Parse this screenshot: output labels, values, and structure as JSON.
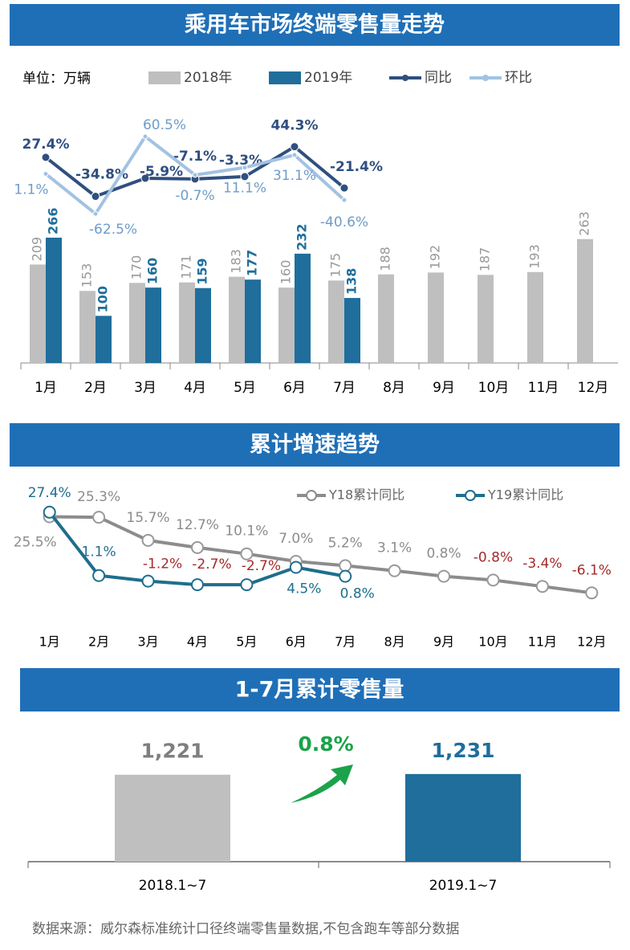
{
  "chart_data": [
    {
      "type": "combo",
      "title": "乘用车市场终端零售量走势",
      "unit": "单位：万辆",
      "categories": [
        "1月",
        "2月",
        "3月",
        "4月",
        "5月",
        "6月",
        "7月",
        "8月",
        "9月",
        "10月",
        "11月",
        "12月"
      ],
      "ylim": [
        0,
        600
      ],
      "y2lim": [
        -300,
        150
      ],
      "series": [
        {
          "name": "2018年",
          "type": "bar",
          "color": "#bfbfbf",
          "values": [
            209,
            153,
            170,
            171,
            183,
            160,
            175,
            188,
            192,
            187,
            193,
            263
          ]
        },
        {
          "name": "2019年",
          "type": "bar",
          "color": "#1f6e9c",
          "values": [
            266,
            100,
            160,
            159,
            177,
            232,
            138,
            null,
            null,
            null,
            null,
            null
          ]
        },
        {
          "name": "同比",
          "type": "line",
          "axis": "y2",
          "color": "#2f4f7f",
          "values": [
            27.4,
            -34.8,
            -5.9,
            -7.1,
            -3.3,
            44.3,
            -21.4,
            null,
            null,
            null,
            null,
            null
          ],
          "value_labels": [
            "27.4%",
            "-34.8%",
            "-5.9%",
            "-7.1%",
            "-3.3%",
            "44.3%",
            "-21.4%",
            null,
            null,
            null,
            null,
            null
          ]
        },
        {
          "name": "环比",
          "type": "line",
          "axis": "y2",
          "color": "#a3c2e2",
          "values": [
            1.1,
            -62.5,
            60.5,
            -0.7,
            11.1,
            31.1,
            -40.6,
            null,
            null,
            null,
            null,
            null
          ],
          "value_labels": [
            "1.1%",
            "-62.5%",
            "60.5%",
            "-0.7%",
            "11.1%",
            "31.1%",
            "-40.6%",
            null,
            null,
            null,
            null,
            null
          ]
        }
      ]
    },
    {
      "type": "line",
      "title": "累计增速趋势",
      "categories": [
        "1月",
        "2月",
        "3月",
        "4月",
        "5月",
        "6月",
        "7月",
        "8月",
        "9月",
        "10月",
        "11月",
        "12月"
      ],
      "ylim": [
        -20,
        40
      ],
      "series": [
        {
          "name": "Y18累计同比",
          "color": "#8c8c8c",
          "values": [
            25.5,
            25.3,
            15.7,
            12.7,
            10.1,
            7.0,
            5.2,
            3.1,
            0.8,
            -0.8,
            -3.4,
            -6.1
          ],
          "value_labels": [
            "25.5%",
            "25.3%",
            "15.7%",
            "12.7%",
            "10.1%",
            "7.0%",
            "5.2%",
            "3.1%",
            "0.8%",
            "-0.8%",
            "-3.4%",
            "-6.1%"
          ]
        },
        {
          "name": "Y19累计同比",
          "color": "#1f6e8c",
          "values": [
            27.4,
            1.1,
            -1.2,
            -2.7,
            -2.7,
            4.5,
            0.8,
            null,
            null,
            null,
            null,
            null
          ],
          "value_labels": [
            "27.4%",
            "1.1%",
            "-1.2%",
            "-2.7%",
            "-2.7%",
            "4.5%",
            "0.8%",
            null,
            null,
            null,
            null,
            null
          ]
        }
      ]
    },
    {
      "type": "bar",
      "title": "1-7月累计零售量",
      "categories": [
        "2018.1~7",
        "2019.1~7"
      ],
      "values": [
        1221,
        1231
      ],
      "value_labels": [
        "1,221",
        "1,231"
      ],
      "colors": [
        "#bfbfbf",
        "#1f6e9c"
      ],
      "label_colors": [
        "#7f7f7f",
        "#1f6e9c"
      ],
      "ylim": [
        0,
        1500
      ],
      "annotation": "0.8%"
    }
  ],
  "footer": "数据来源：威尔森标准统计口径终端零售量数据,不包含跑车等部分数据"
}
